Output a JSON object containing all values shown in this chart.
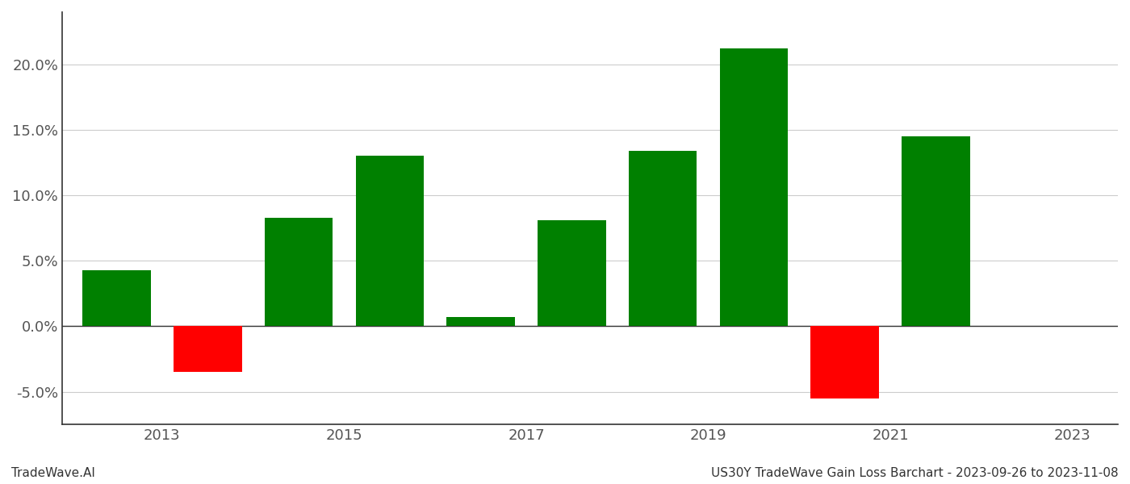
{
  "years": [
    0,
    1,
    2,
    3,
    4,
    5,
    6,
    7,
    8,
    9
  ],
  "values": [
    4.3,
    -3.5,
    8.3,
    13.0,
    0.7,
    8.1,
    13.4,
    21.2,
    -5.5,
    14.5
  ],
  "bar_colors_pos": "#008000",
  "bar_colors_neg": "#ff0000",
  "title": "US30Y TradeWave Gain Loss Barchart - 2023-09-26 to 2023-11-08",
  "footer_left": "TradeWave.AI",
  "ylim_min": -7.5,
  "ylim_max": 24.0,
  "yticks": [
    -5.0,
    0.0,
    5.0,
    10.0,
    15.0,
    20.0
  ],
  "xtick_positions": [
    0.5,
    2.5,
    4.5,
    6.5,
    8.5,
    10.5
  ],
  "xtick_labels": [
    "2013",
    "2015",
    "2017",
    "2019",
    "2021",
    "2023"
  ],
  "xlim_min": -0.6,
  "xlim_max": 11.0,
  "background_color": "#ffffff",
  "bar_width": 0.75,
  "grid_color": "#cccccc",
  "title_fontsize": 11,
  "footer_fontsize": 11,
  "tick_fontsize": 13,
  "axis_label_color": "#555555",
  "spine_color": "#333333"
}
